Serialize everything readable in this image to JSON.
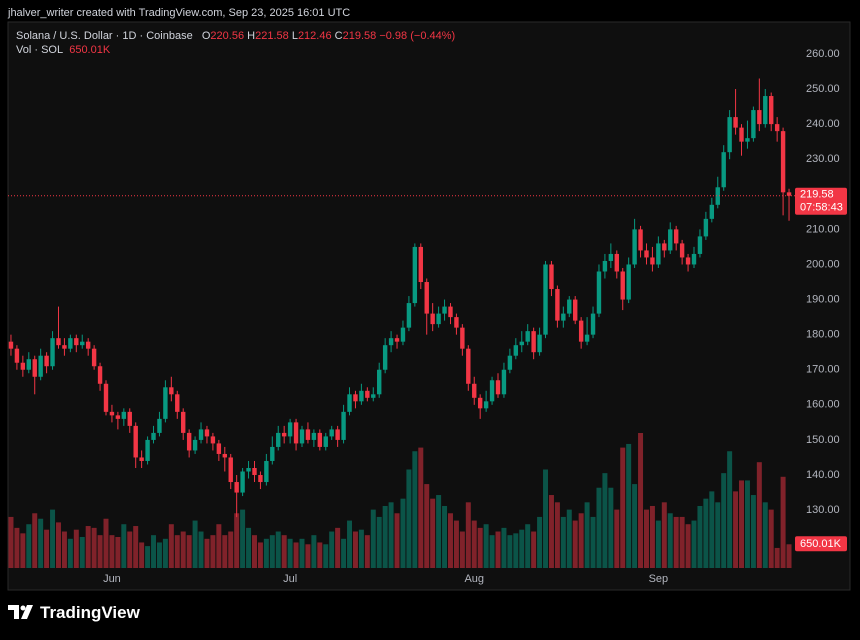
{
  "header": {
    "attribution": "jhalver_writer created with TradingView.com, Sep 23, 2025 16:01 UTC"
  },
  "chart_data": {
    "type": "candlestick",
    "title": "Solana / U.S. Dollar · 1D · Coinbase",
    "legend": {
      "open": "O",
      "high": "H",
      "low": "L",
      "close": "C",
      "change": "−0.98",
      "change_percent": "(−0.44%)"
    },
    "categories": [
      null,
      null,
      null,
      null,
      null,
      null,
      null,
      null,
      null,
      null,
      null,
      null,
      null,
      null,
      null,
      null,
      null,
      "Jun",
      null,
      null,
      null,
      null,
      null,
      null,
      null,
      null,
      null,
      null,
      null,
      null,
      null,
      null,
      null,
      null,
      null,
      null,
      null,
      null,
      null,
      null,
      null,
      null,
      null,
      null,
      null,
      null,
      null,
      "Jul",
      null,
      null,
      null,
      null,
      null,
      null,
      null,
      null,
      null,
      null,
      null,
      null,
      null,
      null,
      null,
      null,
      null,
      null,
      null,
      null,
      null,
      null,
      null,
      null,
      null,
      null,
      null,
      null,
      null,
      null,
      "Aug",
      null,
      null,
      null,
      null,
      null,
      null,
      null,
      null,
      null,
      null,
      null,
      null,
      null,
      null,
      null,
      null,
      null,
      null,
      null,
      null,
      null,
      null,
      null,
      null,
      null,
      null,
      null,
      null,
      null,
      null,
      "Sep",
      null,
      null,
      null,
      null,
      null,
      null,
      null,
      null,
      null,
      null,
      null,
      null,
      null,
      null,
      null,
      null,
      null,
      null,
      null,
      null,
      null,
      null
    ],
    "open": [
      178,
      176,
      172,
      170,
      173,
      168,
      174,
      171,
      179,
      177,
      176,
      179,
      177,
      178,
      176,
      171,
      166,
      158,
      157,
      156,
      158,
      154,
      145,
      144,
      150,
      152,
      156,
      165,
      163,
      158,
      152,
      147,
      150,
      153,
      151,
      149,
      146,
      145,
      138,
      135,
      141,
      142,
      140,
      138,
      144,
      148,
      152,
      151,
      155,
      149,
      153,
      150,
      152,
      148,
      151,
      153,
      150,
      158,
      163,
      161,
      164,
      162,
      163,
      170,
      177,
      179,
      178,
      182,
      189,
      205,
      195,
      186,
      183,
      186,
      188,
      185,
      182,
      176,
      166,
      162,
      159,
      161,
      167,
      163,
      170,
      174,
      177,
      178,
      181,
      175,
      180,
      200,
      193,
      184,
      186,
      190,
      184,
      178,
      180,
      186,
      198,
      201,
      203,
      198,
      190,
      200,
      210,
      204,
      202,
      200,
      206,
      204,
      210,
      206,
      202,
      200,
      203,
      208,
      213,
      217,
      222,
      232,
      242,
      239,
      235,
      236,
      244,
      240,
      248,
      240,
      238,
      220.56
    ],
    "high": [
      180,
      177,
      174,
      175,
      174,
      176,
      175,
      181,
      188,
      179,
      180,
      180,
      180,
      179,
      177,
      172,
      167,
      160,
      158,
      159,
      159,
      155,
      147,
      151,
      154,
      158,
      167,
      168,
      164,
      159,
      153,
      151,
      155,
      154,
      152,
      150,
      148,
      146,
      140,
      142,
      144,
      144,
      141,
      146,
      151,
      154,
      154,
      156,
      156,
      154,
      155,
      153,
      153,
      152,
      154,
      154,
      160,
      165,
      164,
      166,
      165,
      165,
      172,
      179,
      181,
      180,
      184,
      191,
      206,
      206,
      196,
      189,
      188,
      190,
      189,
      186,
      183,
      177,
      168,
      163,
      164,
      168,
      169,
      172,
      176,
      179,
      181,
      183,
      182,
      182,
      201,
      201,
      194,
      188,
      191,
      191,
      185,
      185,
      188,
      200,
      203,
      206,
      204,
      199,
      202,
      213,
      211,
      206,
      205,
      208,
      207,
      212,
      211,
      207,
      203,
      205,
      210,
      215,
      219,
      225,
      234,
      244,
      250,
      240,
      241,
      245,
      253,
      250,
      249,
      242,
      239,
      221.58
    ],
    "low": [
      174,
      170,
      168,
      169,
      163,
      167,
      169,
      170,
      176,
      174,
      175,
      175,
      176,
      174,
      170,
      164,
      157,
      155,
      153,
      154,
      152,
      142,
      142,
      143,
      149,
      151,
      155,
      161,
      156,
      150,
      145,
      146,
      149,
      149,
      147,
      144,
      141,
      136,
      128,
      134,
      139,
      138,
      136,
      137,
      143,
      147,
      149,
      149,
      147,
      148,
      149,
      148,
      147,
      147,
      150,
      148,
      149,
      157,
      159,
      160,
      161,
      161,
      162,
      169,
      175,
      176,
      177,
      181,
      188,
      193,
      180,
      181,
      182,
      184,
      183,
      180,
      174,
      164,
      160,
      156,
      158,
      160,
      162,
      162,
      169,
      173,
      175,
      177,
      173,
      174,
      179,
      191,
      182,
      182,
      185,
      183,
      176,
      177,
      179,
      185,
      196,
      199,
      196,
      187,
      189,
      199,
      202,
      200,
      198,
      199,
      202,
      203,
      204,
      200,
      198,
      199,
      202,
      207,
      212,
      216,
      221,
      230,
      237,
      231,
      233,
      235,
      238,
      239,
      238,
      235,
      214,
      212.46
    ],
    "close": [
      176,
      172,
      170,
      173,
      168,
      174,
      171,
      179,
      177,
      176,
      179,
      177,
      178,
      176,
      171,
      166,
      158,
      157,
      156,
      158,
      154,
      145,
      144,
      150,
      152,
      156,
      165,
      163,
      158,
      152,
      147,
      150,
      153,
      151,
      149,
      146,
      145,
      138,
      135,
      141,
      142,
      140,
      138,
      144,
      148,
      152,
      151,
      155,
      149,
      153,
      150,
      152,
      148,
      151,
      153,
      150,
      158,
      163,
      161,
      164,
      162,
      163,
      170,
      177,
      179,
      178,
      182,
      189,
      205,
      195,
      186,
      183,
      186,
      188,
      185,
      182,
      176,
      166,
      162,
      159,
      161,
      167,
      163,
      170,
      174,
      177,
      178,
      181,
      175,
      180,
      200,
      193,
      184,
      186,
      190,
      184,
      178,
      180,
      186,
      198,
      201,
      203,
      198,
      190,
      200,
      210,
      204,
      202,
      200,
      206,
      204,
      210,
      206,
      202,
      200,
      203,
      208,
      213,
      217,
      222,
      232,
      242,
      239,
      235,
      236,
      244,
      240,
      248,
      240,
      238,
      220.56,
      219.58
    ],
    "up_color": "#089981",
    "down_color": "#f23645",
    "volume": {
      "name": "Vol · SOL",
      "values": [
        1400000,
        1100000,
        950000,
        1200000,
        1500000,
        1350000,
        1050000,
        1600000,
        1250000,
        1000000,
        800000,
        1050000,
        850000,
        1150000,
        1100000,
        900000,
        1350000,
        900000,
        850000,
        1200000,
        1000000,
        1150000,
        700000,
        600000,
        900000,
        700000,
        800000,
        1200000,
        900000,
        1000000,
        900000,
        1300000,
        1000000,
        800000,
        900000,
        1200000,
        900000,
        1000000,
        1500000,
        1600000,
        1100000,
        900000,
        700000,
        800000,
        900000,
        1000000,
        900000,
        800000,
        700000,
        800000,
        650000,
        900000,
        700000,
        650000,
        1000000,
        1100000,
        800000,
        1300000,
        1000000,
        1050000,
        900000,
        1600000,
        1400000,
        1700000,
        1800000,
        1500000,
        1900000,
        2700000,
        3200000,
        3300000,
        2300000,
        1900000,
        2000000,
        1700000,
        1500000,
        1300000,
        1000000,
        1800000,
        1300000,
        1100000,
        1200000,
        900000,
        1000000,
        1100000,
        900000,
        950000,
        1050000,
        1200000,
        1000000,
        1400000,
        2700000,
        2000000,
        1800000,
        1400000,
        1600000,
        1300000,
        1500000,
        1800000,
        1400000,
        2200000,
        2600000,
        2200000,
        1600000,
        3300000,
        3400000,
        2300000,
        3700000,
        1600000,
        1700000,
        1300000,
        1800000,
        1500000,
        1400000,
        1400000,
        1200000,
        1300000,
        1700000,
        1900000,
        2100000,
        1800000,
        2600000,
        3200000,
        2100000,
        2400000,
        2400000,
        2000000,
        2900000,
        1800000,
        1600000,
        550000,
        2500000,
        650010
      ],
      "value_labels": {
        "131": "650.01K"
      }
    },
    "countdown": "07:58:43",
    "ylim": [
      113.5,
      269.1
    ],
    "yticks": [
      {
        "value": 130,
        "label": "130.00"
      },
      {
        "value": 140,
        "label": "140.00"
      },
      {
        "value": 150,
        "label": "150.00"
      },
      {
        "value": 160,
        "label": "160.00"
      },
      {
        "value": 170,
        "label": "170.00"
      },
      {
        "value": 180,
        "label": "180.00"
      },
      {
        "value": 190,
        "label": "190.00"
      },
      {
        "value": 200,
        "label": "200.00"
      },
      {
        "value": 210,
        "label": "210.00"
      },
      {
        "value": 220,
        "label": "220.00"
      },
      {
        "value": 230,
        "label": "230.00"
      },
      {
        "value": 240,
        "label": "240.00"
      },
      {
        "value": 250,
        "label": "250.00"
      },
      {
        "value": 260,
        "label": "260.00"
      }
    ]
  },
  "footer": {
    "brand": "TradingView"
  }
}
